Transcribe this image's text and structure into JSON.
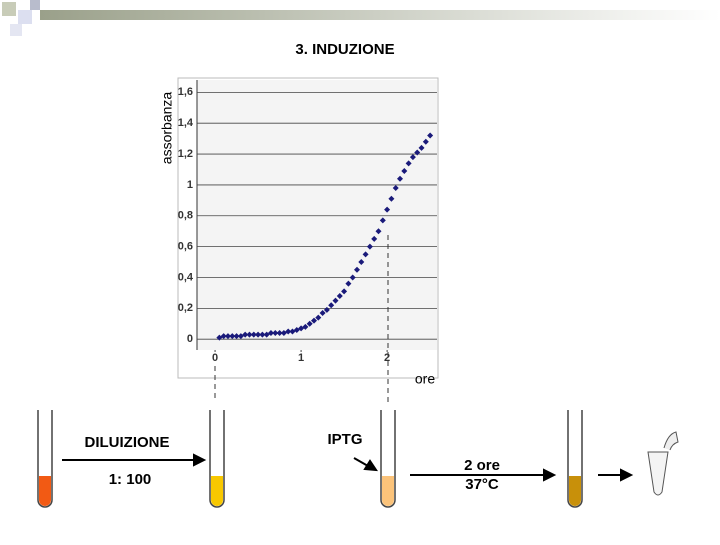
{
  "chart_data": {
    "type": "scatter",
    "title": "3.  INDUZIONE",
    "y_label": "assorbanza",
    "x_label": "ore",
    "x": [
      0.05,
      0.1,
      0.15,
      0.2,
      0.25,
      0.3,
      0.35,
      0.4,
      0.45,
      0.5,
      0.55,
      0.6,
      0.65,
      0.7,
      0.75,
      0.8,
      0.85,
      0.9,
      0.95,
      1.0,
      1.05,
      1.1,
      1.15,
      1.2,
      1.25,
      1.3,
      1.35,
      1.4,
      1.45,
      1.5,
      1.55,
      1.6,
      1.65,
      1.7,
      1.75,
      1.8,
      1.85,
      1.9,
      1.95,
      2.0,
      2.05,
      2.1,
      2.15,
      2.2,
      2.25,
      2.3,
      2.35,
      2.4,
      2.45,
      2.5
    ],
    "series": [
      {
        "color": "#1a1a7a",
        "values": [
          0.01,
          0.02,
          0.02,
          0.02,
          0.02,
          0.02,
          0.03,
          0.03,
          0.03,
          0.03,
          0.03,
          0.03,
          0.04,
          0.04,
          0.04,
          0.04,
          0.05,
          0.05,
          0.06,
          0.07,
          0.08,
          0.1,
          0.12,
          0.14,
          0.17,
          0.19,
          0.22,
          0.25,
          0.28,
          0.31,
          0.36,
          0.4,
          0.45,
          0.5,
          0.55,
          0.6,
          0.65,
          0.7,
          0.77,
          0.84,
          0.91,
          0.98,
          1.04,
          1.09,
          1.14,
          1.18,
          1.21,
          1.24,
          1.28,
          1.32
        ]
      }
    ],
    "xlim": [
      -0.21,
      2.58
    ],
    "ylim": [
      -0.07,
      1.68
    ],
    "xticks": [
      0,
      1,
      2
    ],
    "yticks": [
      0,
      {
        "value": 0.2,
        "label": "0,2"
      },
      {
        "value": 0.4,
        "label": "0,4"
      },
      {
        "value": 0.6,
        "label": "0,6"
      },
      {
        "value": 0.8,
        "label": "0,8"
      },
      1,
      {
        "value": 1.2,
        "label": "1,2"
      },
      {
        "value": 1.4,
        "label": "1,4"
      },
      {
        "value": 1.6,
        "label": "1,6"
      }
    ],
    "grid": true
  },
  "labels": {
    "dilution": "DILUIZIONE",
    "ratio": "1: 100",
    "inducer": "IPTG",
    "time": "2 ore",
    "temperature": "37°C"
  }
}
